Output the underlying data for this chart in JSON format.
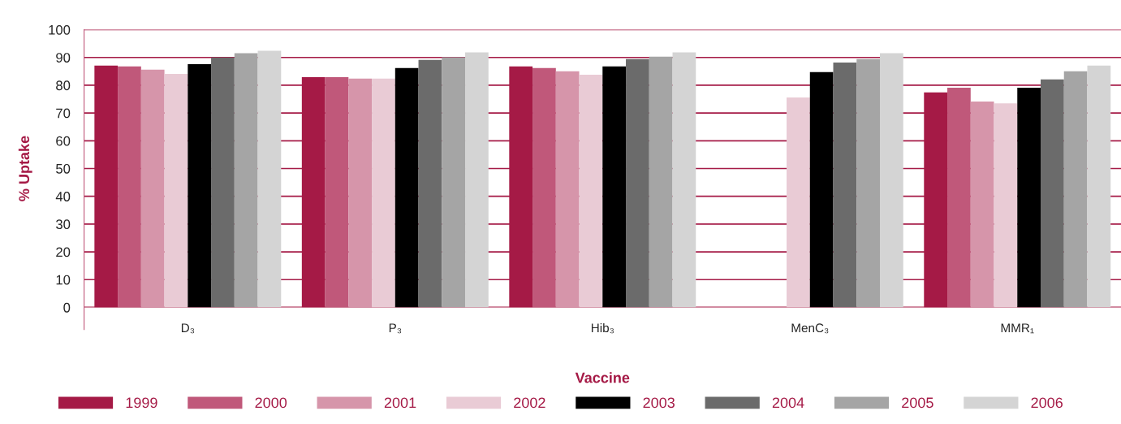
{
  "chart_data": {
    "type": "bar",
    "xlabel": "Vaccine",
    "ylabel": "% Uptake",
    "categories": [
      "D₃",
      "P₃",
      "Hib₃",
      "MenC₃",
      "MMR₁"
    ],
    "series": [
      {
        "name": "1999",
        "color": "#a51a46",
        "values": [
          87.1,
          82.9,
          86.8,
          null,
          77.4
        ]
      },
      {
        "name": "2000",
        "color": "#c0587a",
        "values": [
          86.8,
          82.9,
          86.2,
          null,
          79.1
        ]
      },
      {
        "name": "2001",
        "color": "#d695aa",
        "values": [
          85.6,
          82.4,
          85.0,
          null,
          74.1
        ]
      },
      {
        "name": "2002",
        "color": "#e9cbd5",
        "values": [
          84.1,
          82.4,
          83.8,
          75.6,
          73.5
        ]
      },
      {
        "name": "2003",
        "color": "#000000",
        "values": [
          87.6,
          86.2,
          86.8,
          84.7,
          79.1
        ]
      },
      {
        "name": "2004",
        "color": "#6b6b6b",
        "values": [
          90.0,
          89.1,
          89.4,
          88.2,
          82.1
        ]
      },
      {
        "name": "2005",
        "color": "#a5a5a5",
        "values": [
          91.5,
          90.1,
          90.3,
          89.4,
          85.0
        ]
      },
      {
        "name": "2006",
        "color": "#d4d4d4",
        "values": [
          92.4,
          91.8,
          91.8,
          91.5,
          87.1
        ]
      }
    ],
    "ylim": [
      0,
      100
    ],
    "yticks": [
      0,
      10,
      20,
      30,
      40,
      50,
      60,
      70,
      80,
      90,
      100
    ],
    "grid": "y",
    "legend": "bottom"
  }
}
